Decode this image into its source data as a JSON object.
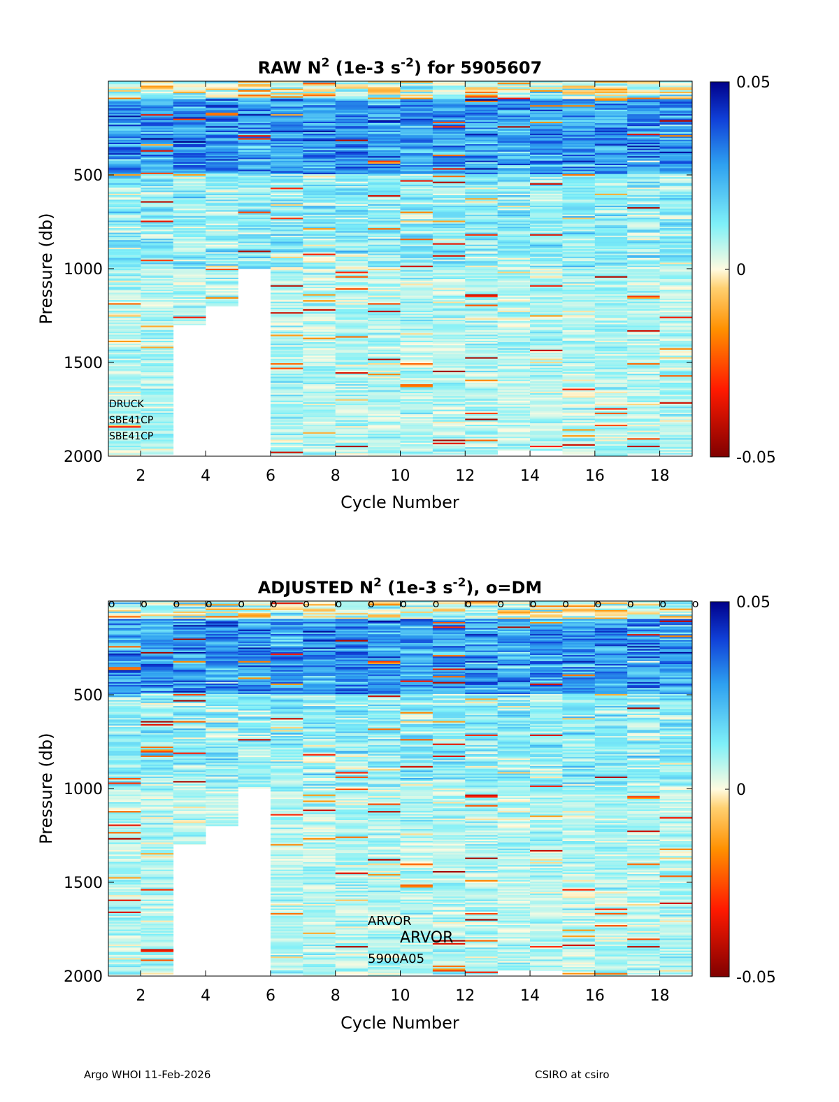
{
  "chart_data": [
    {
      "type": "heatmap",
      "title": {
        "prefix": "RAW N",
        "sup1": "2",
        "mid": " (1e-3 s",
        "sup2": "-2",
        "suffix": ") for 5905607"
      },
      "xlabel": "Cycle Number",
      "ylabel": "Pressure (db)",
      "xlim": [
        1,
        19
      ],
      "ylim": [
        2000,
        0
      ],
      "xticks": [
        2,
        4,
        6,
        8,
        10,
        12,
        14,
        16,
        18
      ],
      "yticks": [
        500,
        1000,
        1500,
        2000
      ],
      "colorbar": {
        "clim": [
          -0.05,
          0.05
        ],
        "ticks": [
          "0.05",
          "0",
          "-0.05"
        ]
      },
      "cycles": [
        1,
        2,
        3,
        4,
        5,
        6,
        7,
        8,
        9,
        10,
        11,
        12,
        13,
        14,
        15,
        16,
        17,
        18
      ],
      "max_pressure": [
        1995,
        1990,
        1300,
        1200,
        1000,
        1990,
        2000,
        1990,
        2000,
        1990,
        1990,
        1990,
        1970,
        1970,
        1990,
        2000,
        1990,
        1990
      ],
      "dm_markers": [],
      "annotations": [
        "DRUCK",
        "SBE41CP",
        "SBE41CP"
      ]
    },
    {
      "type": "heatmap",
      "title": {
        "prefix": "ADJUSTED N",
        "sup1": "2",
        "mid": " (1e-3 s",
        "sup2": "-2",
        "suffix": "), o=DM"
      },
      "xlabel": "Cycle Number",
      "ylabel": "Pressure (db)",
      "xlim": [
        1,
        19
      ],
      "ylim": [
        2000,
        0
      ],
      "xticks": [
        2,
        4,
        6,
        8,
        10,
        12,
        14,
        16,
        18
      ],
      "yticks": [
        500,
        1000,
        1500,
        2000
      ],
      "colorbar": {
        "clim": [
          -0.05,
          0.05
        ],
        "ticks": [
          "0.05",
          "0",
          "-0.05"
        ]
      },
      "cycles": [
        1,
        2,
        3,
        4,
        5,
        6,
        7,
        8,
        9,
        10,
        11,
        12,
        13,
        14,
        15,
        16,
        17,
        18
      ],
      "max_pressure": [
        1995,
        1990,
        1300,
        1200,
        1000,
        1990,
        2000,
        1990,
        2000,
        1990,
        1990,
        1990,
        1970,
        1970,
        1990,
        2000,
        1990,
        1990
      ],
      "dm_markers": [
        1,
        2,
        3,
        4,
        5,
        6,
        7,
        8,
        9,
        10,
        11,
        12,
        13,
        14,
        15,
        16,
        17,
        18,
        19
      ],
      "dm_symbol": "o",
      "annotations": [
        "ARVOR",
        "ARVOR",
        "5900A05"
      ]
    }
  ],
  "footer": {
    "left": "Argo WHOI 11-Feb-2026",
    "right": "CSIRO at csiro"
  }
}
